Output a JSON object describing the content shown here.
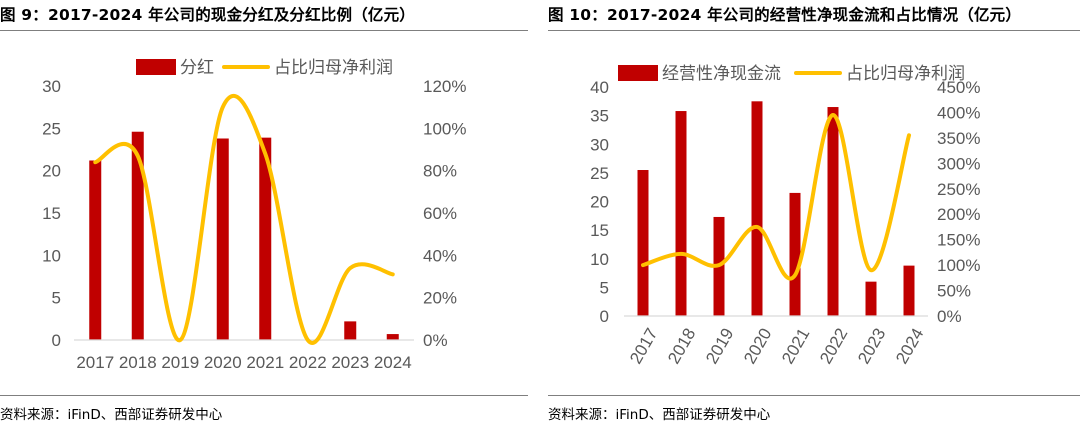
{
  "left": {
    "figure_title": "图 9：2017-2024 年公司的现金分红及分红比例（亿元）",
    "source": "资料来源：iFinD、西部证券研发中心",
    "colors": {
      "bar": "#c00000",
      "line": "#ffc000"
    },
    "chart_data": {
      "type": "bar+line",
      "categories": [
        "2017",
        "2018",
        "2019",
        "2020",
        "2021",
        "2022",
        "2023",
        "2024"
      ],
      "series": [
        {
          "name": "分红",
          "axis": "left",
          "type": "bar",
          "values": [
            21.2,
            24.6,
            0,
            23.8,
            23.9,
            0,
            2.2,
            0.7
          ]
        },
        {
          "name": "占比归母净利润",
          "axis": "right",
          "type": "line",
          "unit": "%",
          "values": [
            84,
            87,
            0,
            110,
            88,
            0,
            34,
            31
          ]
        }
      ],
      "y_left": {
        "min": 0,
        "max": 30,
        "ticks": [
          "0",
          "5",
          "10",
          "15",
          "20",
          "25",
          "30"
        ]
      },
      "y_right": {
        "min": 0,
        "max": 120,
        "ticks": [
          "0%",
          "20%",
          "40%",
          "60%",
          "80%",
          "100%",
          "120%"
        ]
      },
      "legend": "top-center",
      "grid": false
    }
  },
  "right": {
    "figure_title": "图 10：2017-2024 年公司的经营性净现金流和占比情况（亿元）",
    "source": "资料来源：iFinD、西部证券研发中心",
    "colors": {
      "bar": "#c00000",
      "line": "#ffc000"
    },
    "chart_data": {
      "type": "bar+line",
      "categories": [
        "2017",
        "2018",
        "2019",
        "2020",
        "2021",
        "2022",
        "2023",
        "2024"
      ],
      "series": [
        {
          "name": "经营性净现金流",
          "axis": "left",
          "type": "bar",
          "values": [
            25.5,
            35.8,
            17.3,
            37.5,
            21.5,
            36.5,
            6.0,
            8.8
          ]
        },
        {
          "name": "占比归母净利润",
          "axis": "right",
          "type": "line",
          "unit": "%",
          "values": [
            100,
            122,
            100,
            175,
            80,
            395,
            90,
            355
          ]
        }
      ],
      "y_left": {
        "min": 0,
        "max": 40,
        "ticks": [
          "0",
          "5",
          "10",
          "15",
          "20",
          "25",
          "30",
          "35",
          "40"
        ]
      },
      "y_right": {
        "min": 0,
        "max": 450,
        "ticks": [
          "0%",
          "50%",
          "100%",
          "150%",
          "200%",
          "250%",
          "300%",
          "350%",
          "400%",
          "450%"
        ]
      },
      "legend": "top-center",
      "x_tick_rotation": "rotated",
      "grid": false
    }
  }
}
